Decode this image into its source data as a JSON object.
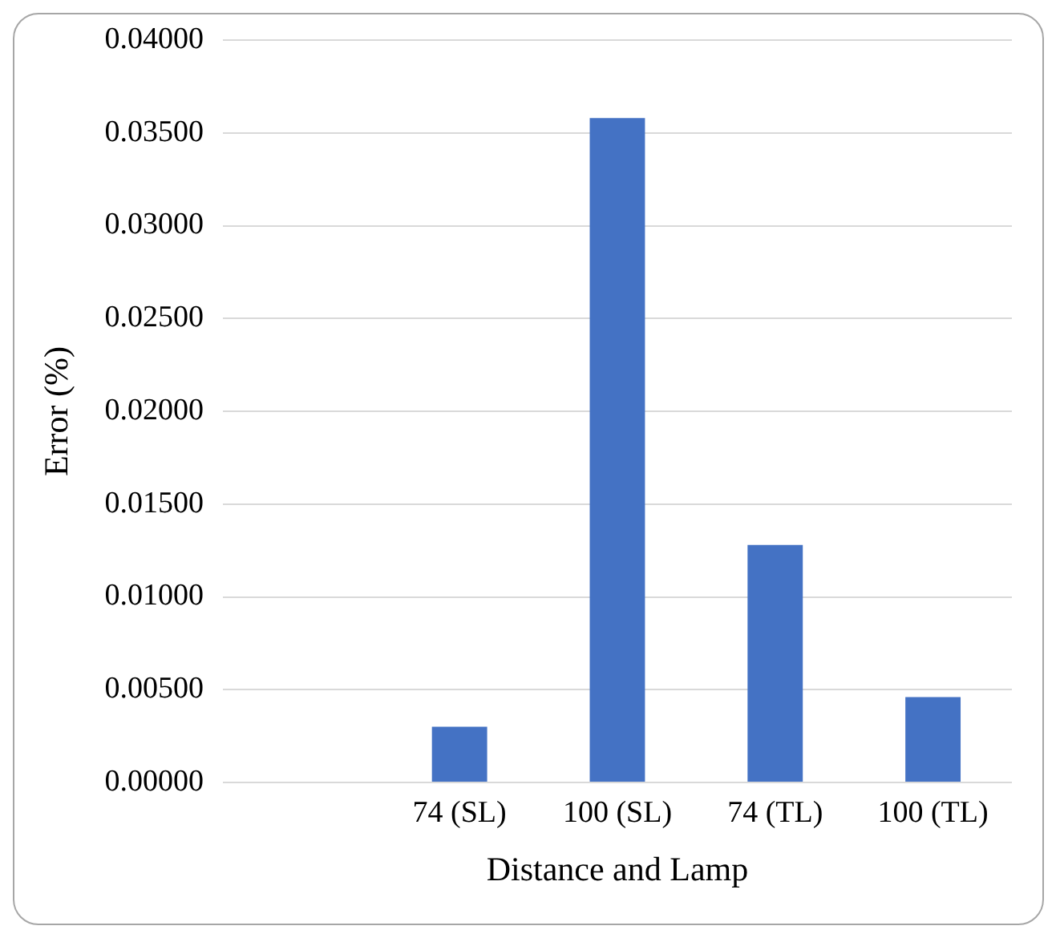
{
  "chart_data": {
    "type": "bar",
    "xlabel": "Distance and Lamp",
    "ylabel": "Error (%)",
    "categories": [
      null,
      "74 (SL)",
      "100 (SL)",
      "74 (TL)",
      "100 (TL)"
    ],
    "values": [
      null,
      0.003,
      0.0358,
      0.0128,
      0.0046
    ],
    "color": "#4472c4",
    "ylim": [
      0,
      0.04
    ],
    "yticks": [
      {
        "value": 0,
        "label": "0.00000"
      },
      {
        "value": 0.005,
        "label": "0.00500"
      },
      {
        "value": 0.01,
        "label": "0.01000"
      },
      {
        "value": 0.015,
        "label": "0.01500"
      },
      {
        "value": 0.02,
        "label": "0.02000"
      },
      {
        "value": 0.025,
        "label": "0.02500"
      },
      {
        "value": 0.03,
        "label": "0.03000"
      },
      {
        "value": 0.035,
        "label": "0.03500"
      },
      {
        "value": 0.04,
        "label": "0.04000"
      }
    ],
    "grid": "y",
    "legend": false
  }
}
